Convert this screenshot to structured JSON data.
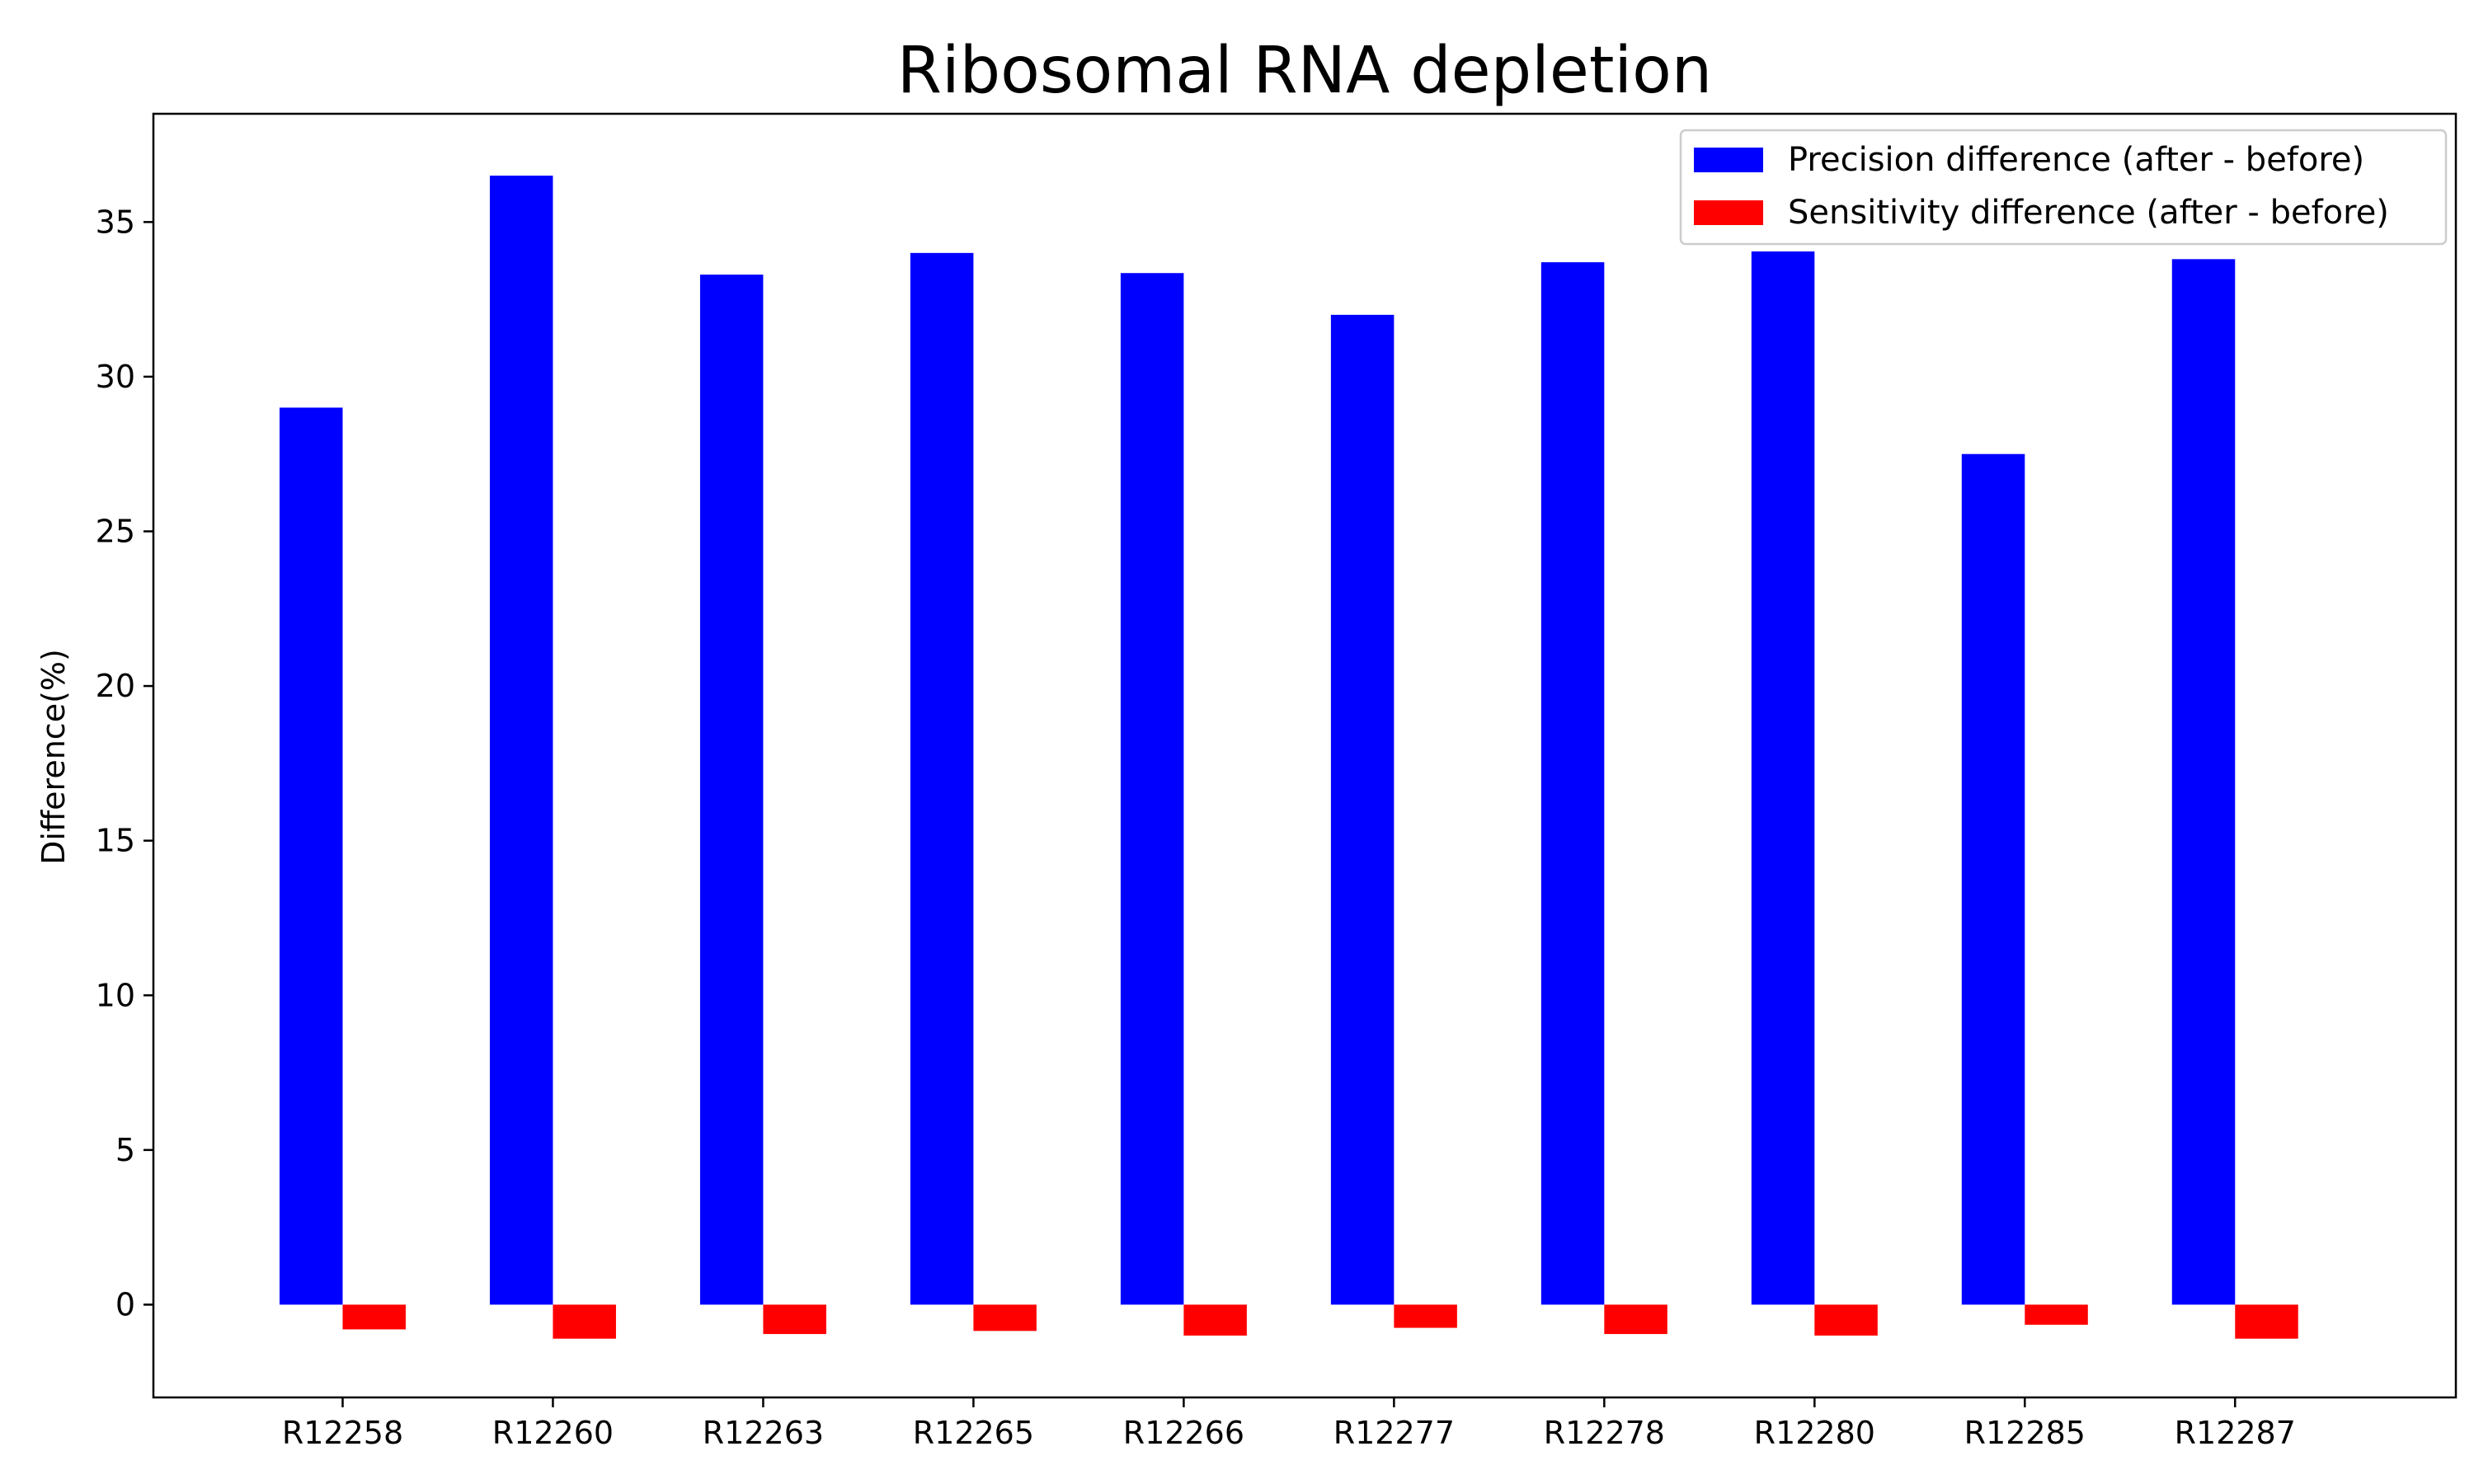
{
  "chart_data": {
    "type": "bar",
    "title": "Ribosomal RNA depletion",
    "xlabel": "",
    "ylabel": "Difference(%)",
    "categories": [
      "R12258",
      "R12260",
      "R12263",
      "R12265",
      "R12266",
      "R12277",
      "R12278",
      "R12280",
      "R12285",
      "R12287"
    ],
    "series": [
      {
        "name": "Precision difference (after - before)",
        "color": "#0000ff",
        "values": [
          29.0,
          36.5,
          33.3,
          34.0,
          33.35,
          32.0,
          33.7,
          34.05,
          27.5,
          33.8
        ]
      },
      {
        "name": "Sensitivity difference (after - before)",
        "color": "#ff0000",
        "values": [
          -0.8,
          -1.1,
          -0.95,
          -0.85,
          -1.0,
          -0.75,
          -0.95,
          -1.0,
          -0.65,
          -1.1
        ]
      }
    ],
    "ylim": [
      -3.0,
      38.5
    ],
    "yticks": [
      0,
      5,
      10,
      15,
      20,
      25,
      30,
      35
    ],
    "grid": false,
    "legend_position": "top-right"
  }
}
